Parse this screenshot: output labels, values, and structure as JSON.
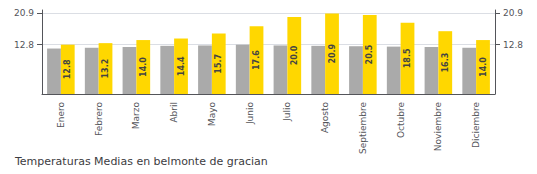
{
  "chart_data": {
    "type": "bar",
    "title": "Temperaturas Medias en belmonte de gracian",
    "categories": [
      "Enero",
      "Febrero",
      "Marzo",
      "Abril",
      "Mayo",
      "Junio",
      "Julio",
      "Agosto",
      "Septiembre",
      "Octubre",
      "Noviembre",
      "Diciembre"
    ],
    "series": [
      {
        "color": "#AAAAAA",
        "values": [
          11.8,
          12.0,
          12.2,
          12.5,
          12.6,
          12.8,
          12.6,
          12.5,
          12.4,
          12.3,
          12.2,
          12.0
        ]
      },
      {
        "color": "#FFD700",
        "values": [
          12.8,
          13.2,
          14.0,
          14.4,
          15.7,
          17.6,
          20.0,
          20.9,
          20.5,
          18.5,
          16.3,
          14.0
        ],
        "data_labels": true,
        "value_labels": [
          "12.8",
          "13.2",
          "14.0",
          "14.4",
          "15.7",
          "17.6",
          "20.0",
          "20.9",
          "20.5",
          "18.5",
          "16.3",
          "14.0"
        ]
      }
    ],
    "ylim": [
      0,
      21.8
    ],
    "yticks": [
      12.8,
      20.9
    ],
    "y2lim": [
      0,
      21.8
    ],
    "y2ticks": [
      12.8,
      20.9
    ],
    "grid": true
  }
}
